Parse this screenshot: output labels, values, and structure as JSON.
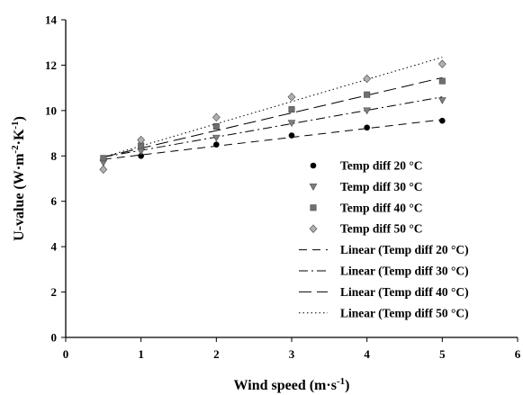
{
  "chart_data": {
    "type": "scatter",
    "xlabel": "Wind speed (m·s⁻¹)",
    "ylabel": "U-value (W·m⁻²·K⁻¹)",
    "xlabel_parts": {
      "base": "Wind speed (m·s",
      "sup": "-1",
      "end": ")"
    },
    "ylabel_parts": {
      "p1": "U-value (W·m",
      "sup1": "-2",
      "p2": "·K",
      "sup2": "-1",
      "end": ")"
    },
    "xlim": [
      0,
      6
    ],
    "ylim": [
      0,
      14
    ],
    "xticks": [
      0,
      1,
      2,
      3,
      4,
      5,
      6
    ],
    "yticks": [
      0,
      2,
      4,
      6,
      8,
      10,
      12,
      14
    ],
    "grid": false,
    "legend_position": "lower-right",
    "series": [
      {
        "name": "Temp diff 20 °C",
        "marker": "circle",
        "color": "#000000",
        "x": [
          0.5,
          1,
          2,
          3,
          4,
          5
        ],
        "y": [
          7.85,
          8.0,
          8.5,
          8.9,
          9.25,
          9.55
        ]
      },
      {
        "name": "Temp diff 30 °C",
        "marker": "triangle-down",
        "color": "#808080",
        "x": [
          0.5,
          1,
          2,
          3,
          4,
          5
        ],
        "y": [
          7.7,
          8.2,
          8.8,
          9.45,
          10.0,
          10.45
        ]
      },
      {
        "name": "Temp diff 40 °C",
        "marker": "square",
        "color": "#707070",
        "x": [
          0.5,
          1,
          2,
          3,
          4,
          5
        ],
        "y": [
          7.9,
          8.45,
          9.3,
          10.05,
          10.7,
          11.3
        ]
      },
      {
        "name": "Temp diff 50 °C",
        "marker": "diamond",
        "color": "#b0b0b0",
        "x": [
          0.5,
          1,
          2,
          3,
          4,
          5
        ],
        "y": [
          7.4,
          8.7,
          9.7,
          10.6,
          11.4,
          12.05
        ]
      }
    ],
    "trendlines": [
      {
        "name": "Linear (Temp diff 20 °C)",
        "style": "dash",
        "x": [
          0.5,
          5
        ],
        "y": [
          7.85,
          9.6
        ]
      },
      {
        "name": "Linear (Temp diff 30 °C)",
        "style": "dash-dot",
        "x": [
          0.5,
          5
        ],
        "y": [
          7.95,
          10.6
        ]
      },
      {
        "name": "Linear (Temp diff 40 °C)",
        "style": "long-dash",
        "x": [
          0.5,
          5
        ],
        "y": [
          7.95,
          11.45
        ]
      },
      {
        "name": "Linear (Temp diff 50 °C)",
        "style": "dot",
        "x": [
          0.5,
          5
        ],
        "y": [
          7.95,
          12.35
        ]
      }
    ]
  }
}
